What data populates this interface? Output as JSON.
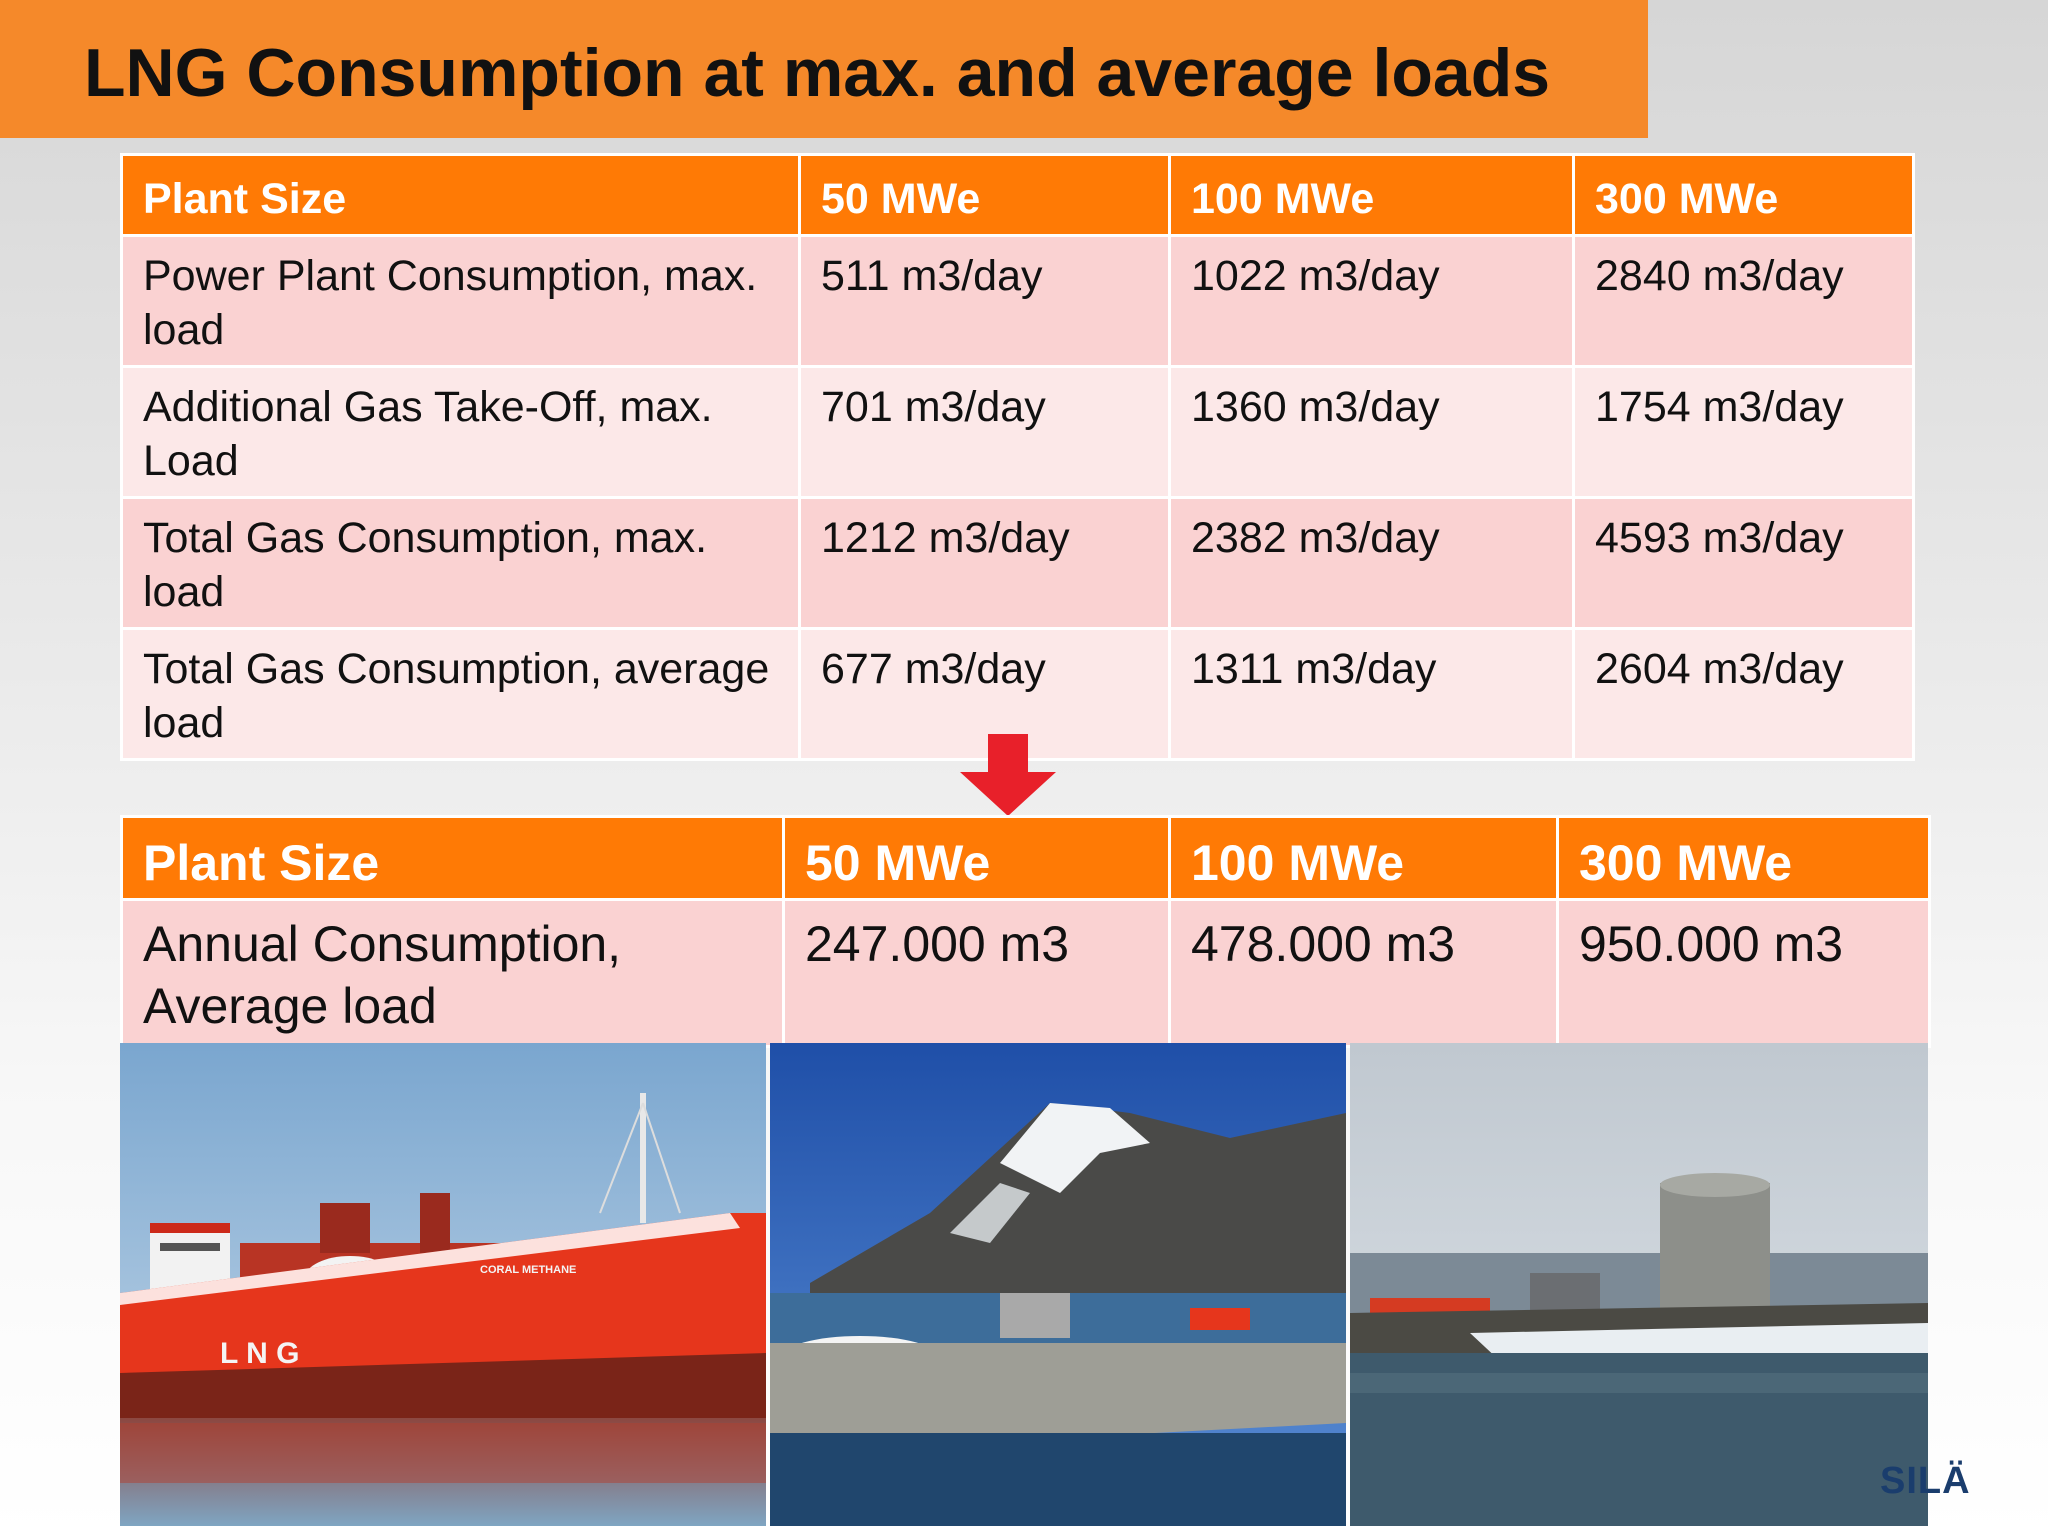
{
  "title": "LNG Consumption at max. and average loads",
  "table_daily": {
    "headers": [
      "Plant Size",
      "50 MWe",
      "100 MWe",
      "300 MWe"
    ],
    "rows": [
      [
        "Power Plant Consumption, max. load",
        "511 m3/day",
        "1022 m3/day",
        "2840 m3/day"
      ],
      [
        "Additional Gas Take-Off, max. Load",
        "701 m3/day",
        "1360 m3/day",
        "1754 m3/day"
      ],
      [
        "Total Gas Consumption, max. load",
        "1212 m3/day",
        "2382 m3/day",
        "4593 m3/day"
      ],
      [
        "Total Gas Consumption, average load",
        "677 m3/day",
        "1311 m3/day",
        "2604 m3/day"
      ]
    ]
  },
  "table_annual": {
    "headers": [
      "Plant Size",
      "50 MWe",
      "100 MWe",
      "300 MWe"
    ],
    "rows": [
      [
        "Annual Consumption, Average load",
        "247.000 m3",
        "478.000 m3",
        "950.000 m3"
      ]
    ]
  },
  "photos": {
    "ship_hull_text": "L N G",
    "ship_name": "CORAL METHANE"
  },
  "logo_text": "SILÄ",
  "colors": {
    "title_bar": "#f5892a",
    "header_orange": "#ff7a05",
    "row_dark": "#fad2d2",
    "row_light": "#fce8e8",
    "arrow_red": "#e8202a"
  }
}
